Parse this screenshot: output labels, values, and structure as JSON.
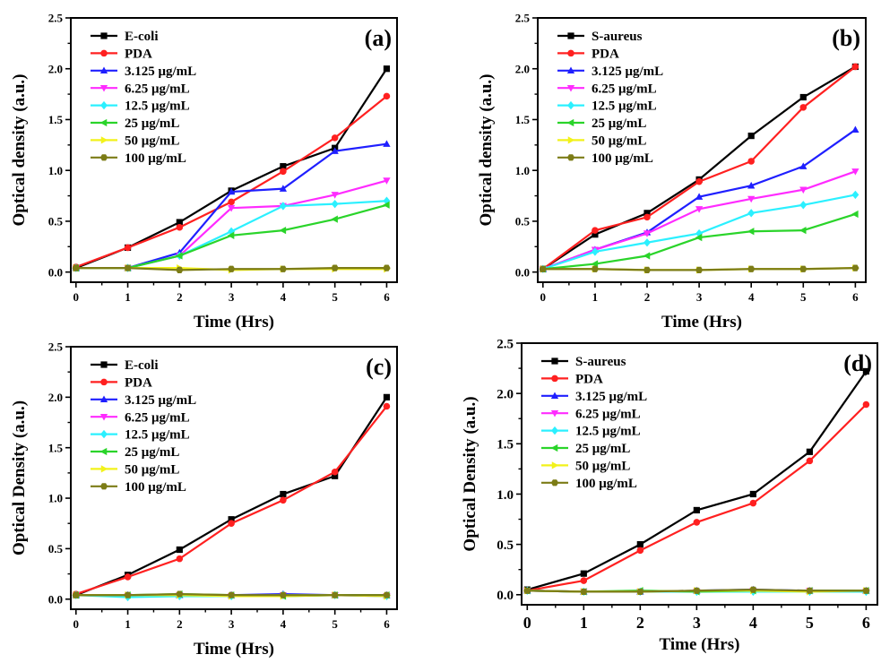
{
  "colors": {
    "black": "#000000",
    "red": "#ff2020",
    "blue": "#1f1fff",
    "magenta": "#ff2bff",
    "cyan": "#2bf0ff",
    "green": "#2ad42a",
    "yellow": "#f2f21a",
    "olive": "#7c7c16"
  },
  "chart_data": [
    {
      "type": "line",
      "panel_label": "(a)",
      "xlabel": "Time (Hrs)",
      "ylabel": "Optical density (a.u.)",
      "xlim": [
        -0.1,
        6.2
      ],
      "ylim": [
        -0.1,
        2.5
      ],
      "x_ticks": [
        "0",
        "1",
        "2",
        "3",
        "4",
        "5",
        "6"
      ],
      "y_ticks": [
        "0.0",
        "0.5",
        "1.0",
        "1.5",
        "2.0",
        "2.5"
      ],
      "legend_position": "top-left",
      "x": [
        0,
        1,
        2,
        3,
        4,
        5,
        6
      ],
      "series": [
        {
          "name": "E-coli",
          "color": "black",
          "marker": "square",
          "values": [
            0.04,
            0.24,
            0.49,
            0.8,
            1.04,
            1.22,
            2.0
          ]
        },
        {
          "name": "PDA",
          "color": "red",
          "marker": "circle",
          "values": [
            0.05,
            0.24,
            0.44,
            0.69,
            0.99,
            1.32,
            1.73
          ]
        },
        {
          "name": "3.125 μg/mL",
          "color": "blue",
          "marker": "triangle-up",
          "values": [
            0.04,
            0.04,
            0.19,
            0.79,
            0.82,
            1.19,
            1.26
          ]
        },
        {
          "name": "6.25 μg/mL",
          "color": "magenta",
          "marker": "triangle-down",
          "values": [
            0.04,
            0.04,
            0.16,
            0.63,
            0.65,
            0.76,
            0.9
          ]
        },
        {
          "name": "12.5 μg/mL",
          "color": "cyan",
          "marker": "diamond",
          "values": [
            0.04,
            0.04,
            0.16,
            0.4,
            0.65,
            0.67,
            0.7
          ]
        },
        {
          "name": "25 μg/mL",
          "color": "green",
          "marker": "triangle-left",
          "values": [
            0.04,
            0.04,
            0.16,
            0.36,
            0.41,
            0.52,
            0.66
          ]
        },
        {
          "name": "50 μg/mL",
          "color": "yellow",
          "marker": "triangle-right",
          "values": [
            0.04,
            0.04,
            0.04,
            0.02,
            0.03,
            0.03,
            0.03
          ]
        },
        {
          "name": "100 μg/mL",
          "color": "olive",
          "marker": "hexagon",
          "values": [
            0.04,
            0.04,
            0.02,
            0.03,
            0.03,
            0.04,
            0.04
          ]
        }
      ]
    },
    {
      "type": "line",
      "panel_label": "(b)",
      "xlabel": "Time (Hrs)",
      "ylabel": "Optical density (a.u.)",
      "xlim": [
        -0.1,
        6.2
      ],
      "ylim": [
        -0.1,
        2.5
      ],
      "x_ticks": [
        "0",
        "1",
        "2",
        "3",
        "4",
        "5",
        "6"
      ],
      "y_ticks": [
        "0.0",
        "0.5",
        "1.0",
        "1.5",
        "2.0",
        "2.5"
      ],
      "legend_position": "top-left",
      "x": [
        0,
        1,
        2,
        3,
        4,
        5,
        6
      ],
      "series": [
        {
          "name": "S-aureus",
          "color": "black",
          "marker": "square",
          "values": [
            0.03,
            0.37,
            0.58,
            0.91,
            1.34,
            1.72,
            2.02
          ]
        },
        {
          "name": "PDA",
          "color": "red",
          "marker": "circle",
          "values": [
            0.03,
            0.41,
            0.54,
            0.89,
            1.09,
            1.62,
            2.02
          ]
        },
        {
          "name": "3.125 μg/mL",
          "color": "blue",
          "marker": "triangle-up",
          "values": [
            0.03,
            0.22,
            0.39,
            0.74,
            0.85,
            1.04,
            1.4
          ]
        },
        {
          "name": "6.25 μg/mL",
          "color": "magenta",
          "marker": "triangle-down",
          "values": [
            0.03,
            0.22,
            0.38,
            0.62,
            0.72,
            0.81,
            0.99
          ]
        },
        {
          "name": "12.5 μg/mL",
          "color": "cyan",
          "marker": "diamond",
          "values": [
            0.03,
            0.2,
            0.29,
            0.38,
            0.58,
            0.66,
            0.76
          ]
        },
        {
          "name": "25 μg/mL",
          "color": "green",
          "marker": "triangle-left",
          "values": [
            0.03,
            0.08,
            0.16,
            0.34,
            0.4,
            0.41,
            0.57
          ]
        },
        {
          "name": "50 μg/mL",
          "color": "yellow",
          "marker": "triangle-right",
          "values": [
            0.03,
            0.03,
            0.02,
            0.02,
            0.03,
            0.03,
            0.04
          ]
        },
        {
          "name": "100 μg/mL",
          "color": "olive",
          "marker": "hexagon",
          "values": [
            0.03,
            0.03,
            0.02,
            0.02,
            0.03,
            0.03,
            0.04
          ]
        }
      ]
    },
    {
      "type": "line",
      "panel_label": "(c)",
      "xlabel": "Time (Hrs)",
      "ylabel": "Optical Density (a.u.)",
      "xlim": [
        -0.1,
        6.2
      ],
      "ylim": [
        -0.1,
        2.5
      ],
      "x_ticks": [
        "0",
        "1",
        "2",
        "3",
        "4",
        "5",
        "6"
      ],
      "y_ticks": [
        "0.0",
        "0.5",
        "1.0",
        "1.5",
        "2.0",
        "2.5"
      ],
      "legend_position": "top-left",
      "x": [
        0,
        1,
        2,
        3,
        4,
        5,
        6
      ],
      "series": [
        {
          "name": "E-coli",
          "color": "black",
          "marker": "square",
          "values": [
            0.04,
            0.24,
            0.49,
            0.79,
            1.04,
            1.22,
            2.0
          ]
        },
        {
          "name": "PDA",
          "color": "red",
          "marker": "circle",
          "values": [
            0.05,
            0.22,
            0.4,
            0.75,
            0.98,
            1.26,
            1.91
          ]
        },
        {
          "name": "3.125 μg/mL",
          "color": "blue",
          "marker": "triangle-up",
          "values": [
            0.04,
            0.04,
            0.04,
            0.04,
            0.05,
            0.04,
            0.04
          ]
        },
        {
          "name": "6.25 μg/mL",
          "color": "magenta",
          "marker": "triangle-down",
          "values": [
            0.04,
            0.03,
            0.04,
            0.03,
            0.04,
            0.04,
            0.03
          ]
        },
        {
          "name": "12.5 μg/mL",
          "color": "cyan",
          "marker": "diamond",
          "values": [
            0.04,
            0.02,
            0.03,
            0.03,
            0.04,
            0.04,
            0.03
          ]
        },
        {
          "name": "25 μg/mL",
          "color": "green",
          "marker": "triangle-left",
          "values": [
            0.04,
            0.04,
            0.05,
            0.04,
            0.03,
            0.04,
            0.04
          ]
        },
        {
          "name": "50 μg/mL",
          "color": "yellow",
          "marker": "triangle-right",
          "values": [
            0.04,
            0.04,
            0.04,
            0.03,
            0.03,
            0.04,
            0.03
          ]
        },
        {
          "name": "100 μg/mL",
          "color": "olive",
          "marker": "hexagon",
          "values": [
            0.04,
            0.04,
            0.05,
            0.04,
            0.04,
            0.04,
            0.04
          ]
        }
      ]
    },
    {
      "type": "line",
      "panel_label": "(d)",
      "xlabel": "Time (Hrs)",
      "ylabel": "Optical Density (a.u.)",
      "xlim": [
        -0.1,
        6.2
      ],
      "ylim": [
        -0.1,
        2.5
      ],
      "x_ticks": [
        "0",
        "1",
        "2",
        "3",
        "4",
        "5",
        "6"
      ],
      "y_ticks": [
        "0.0",
        "0.5",
        "1.0",
        "1.5",
        "2.0",
        "2.5"
      ],
      "legend_position": "top-left",
      "x": [
        0,
        1,
        2,
        3,
        4,
        5,
        6
      ],
      "series": [
        {
          "name": "S-aureus",
          "color": "black",
          "marker": "square",
          "values": [
            0.05,
            0.21,
            0.5,
            0.84,
            1.0,
            1.42,
            2.22
          ]
        },
        {
          "name": "PDA",
          "color": "red",
          "marker": "circle",
          "values": [
            0.04,
            0.14,
            0.44,
            0.72,
            0.91,
            1.33,
            1.89
          ]
        },
        {
          "name": "3.125 μg/mL",
          "color": "blue",
          "marker": "triangle-up",
          "values": [
            0.04,
            0.03,
            0.03,
            0.04,
            0.05,
            0.04,
            0.04
          ]
        },
        {
          "name": "6.25 μg/mL",
          "color": "magenta",
          "marker": "triangle-down",
          "values": [
            0.04,
            0.03,
            0.03,
            0.03,
            0.04,
            0.04,
            0.03
          ]
        },
        {
          "name": "12.5 μg/mL",
          "color": "cyan",
          "marker": "diamond",
          "values": [
            0.04,
            0.03,
            0.03,
            0.03,
            0.03,
            0.03,
            0.03
          ]
        },
        {
          "name": "25 μg/mL",
          "color": "green",
          "marker": "triangle-left",
          "values": [
            0.04,
            0.03,
            0.04,
            0.03,
            0.04,
            0.04,
            0.04
          ]
        },
        {
          "name": "50 μg/mL",
          "color": "yellow",
          "marker": "triangle-right",
          "values": [
            0.04,
            0.03,
            0.03,
            0.04,
            0.04,
            0.03,
            0.04
          ]
        },
        {
          "name": "100 μg/mL",
          "color": "olive",
          "marker": "hexagon",
          "values": [
            0.04,
            0.03,
            0.03,
            0.04,
            0.05,
            0.04,
            0.04
          ]
        }
      ]
    }
  ]
}
